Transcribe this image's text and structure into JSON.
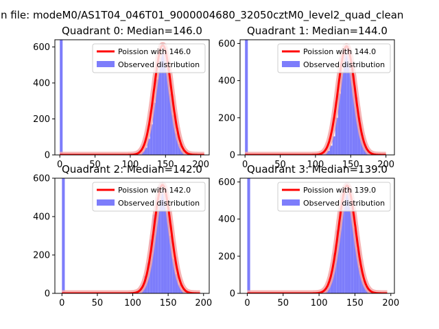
{
  "figure": {
    "suptitle": "n file: modeM0/AS1T04_046T01_9000004680_32050cztM0_level2_quad_clean",
    "colors": {
      "hist": "#7d7dfb",
      "fit": "#ff0000",
      "fit_glow": "#f4a6a6",
      "axis": "#000000"
    }
  },
  "chart_data": [
    {
      "type": "bar",
      "title": "Quadrant 0: Median=146.0",
      "xlim": [
        -7,
        212
      ],
      "ylim": [
        0,
        640
      ],
      "xticks": [
        0,
        50,
        100,
        150,
        200
      ],
      "yticks": [
        0,
        200,
        400,
        600
      ],
      "legend": [
        "Poission with 146.0",
        "Observed distribution"
      ],
      "legend_position": "upper right",
      "median": 146.0,
      "histogram": {
        "bin_width": 4,
        "bins": [
          [
            0,
            700
          ],
          [
            84,
            3
          ],
          [
            88,
            6
          ],
          [
            92,
            3
          ],
          [
            96,
            4
          ],
          [
            100,
            3
          ],
          [
            104,
            5
          ],
          [
            108,
            6
          ],
          [
            112,
            10
          ],
          [
            116,
            20
          ],
          [
            120,
            40
          ],
          [
            124,
            90
          ],
          [
            128,
            170
          ],
          [
            132,
            290
          ],
          [
            136,
            420
          ],
          [
            140,
            540
          ],
          [
            144,
            610
          ],
          [
            148,
            580
          ],
          [
            152,
            480
          ],
          [
            156,
            340
          ],
          [
            160,
            220
          ],
          [
            164,
            120
          ],
          [
            168,
            60
          ],
          [
            172,
            25
          ],
          [
            176,
            10
          ],
          [
            180,
            5
          ],
          [
            184,
            3
          ],
          [
            188,
            2
          ],
          [
            192,
            1
          ],
          [
            196,
            1
          ],
          [
            200,
            1
          ]
        ]
      },
      "fit": {
        "label": "Poission with 146.0",
        "mean": 146.0,
        "peak": 610,
        "x_range": [
          0,
          205
        ]
      }
    },
    {
      "type": "bar",
      "title": "Quadrant 1: Median=144.0",
      "xlim": [
        -7,
        212
      ],
      "ylim": [
        0,
        620
      ],
      "xticks": [
        0,
        50,
        100,
        150,
        200
      ],
      "yticks": [
        0,
        200,
        400,
        600
      ],
      "legend": [
        "Poission with 144.0",
        "Observed distribution"
      ],
      "legend_position": "upper right",
      "median": 144.0,
      "histogram": {
        "bin_width": 4,
        "bins": [
          [
            0,
            700
          ],
          [
            84,
            3
          ],
          [
            88,
            5
          ],
          [
            92,
            4
          ],
          [
            96,
            3
          ],
          [
            100,
            4
          ],
          [
            104,
            5
          ],
          [
            108,
            8
          ],
          [
            112,
            12
          ],
          [
            116,
            22
          ],
          [
            120,
            50
          ],
          [
            124,
            100
          ],
          [
            128,
            200
          ],
          [
            132,
            330
          ],
          [
            136,
            450
          ],
          [
            140,
            560
          ],
          [
            144,
            590
          ],
          [
            148,
            520
          ],
          [
            152,
            430
          ],
          [
            156,
            310
          ],
          [
            160,
            200
          ],
          [
            164,
            120
          ],
          [
            168,
            60
          ],
          [
            172,
            20
          ],
          [
            176,
            8
          ],
          [
            180,
            4
          ],
          [
            184,
            3
          ],
          [
            188,
            2
          ],
          [
            192,
            1
          ],
          [
            196,
            1
          ],
          [
            200,
            1
          ]
        ]
      },
      "fit": {
        "label": "Poission with 144.0",
        "mean": 144.0,
        "peak": 585,
        "x_range": [
          0,
          200
        ]
      }
    },
    {
      "type": "bar",
      "title": "Quadrant 2: Median=142.0",
      "xlim": [
        -10,
        208
      ],
      "ylim": [
        0,
        600
      ],
      "xticks": [
        0,
        50,
        100,
        150,
        200
      ],
      "yticks": [
        0,
        200,
        400,
        600
      ],
      "legend": [
        "Poission with 142.0",
        "Observed distribution"
      ],
      "legend_position": "upper right",
      "median": 142.0,
      "histogram": {
        "bin_width": 4,
        "bins": [
          [
            0,
            700
          ],
          [
            80,
            3
          ],
          [
            84,
            4
          ],
          [
            88,
            3
          ],
          [
            92,
            4
          ],
          [
            96,
            5
          ],
          [
            100,
            8
          ],
          [
            104,
            12
          ],
          [
            108,
            18
          ],
          [
            112,
            40
          ],
          [
            116,
            90
          ],
          [
            120,
            160
          ],
          [
            124,
            280
          ],
          [
            128,
            410
          ],
          [
            132,
            500
          ],
          [
            136,
            560
          ],
          [
            140,
            570
          ],
          [
            144,
            520
          ],
          [
            148,
            420
          ],
          [
            152,
            300
          ],
          [
            156,
            180
          ],
          [
            160,
            100
          ],
          [
            164,
            45
          ],
          [
            168,
            20
          ],
          [
            172,
            10
          ],
          [
            176,
            5
          ],
          [
            180,
            4
          ],
          [
            184,
            3
          ],
          [
            188,
            2
          ],
          [
            192,
            2
          ],
          [
            196,
            1
          ]
        ]
      },
      "fit": {
        "label": "Poission with 142.0",
        "mean": 142.0,
        "peak": 565,
        "x_range": [
          0,
          195
        ]
      }
    },
    {
      "type": "bar",
      "title": "Quadrant 3: Median=139.0",
      "xlim": [
        -10,
        205
      ],
      "ylim": [
        0,
        620
      ],
      "xticks": [
        0,
        50,
        100,
        150,
        200
      ],
      "yticks": [
        0,
        200,
        400,
        600
      ],
      "legend": [
        "Poission with 139.0",
        "Observed distribution"
      ],
      "legend_position": "upper right",
      "median": 139.0,
      "histogram": {
        "bin_width": 4,
        "bins": [
          [
            0,
            700
          ],
          [
            76,
            3
          ],
          [
            80,
            4
          ],
          [
            84,
            5
          ],
          [
            88,
            4
          ],
          [
            92,
            5
          ],
          [
            96,
            6
          ],
          [
            100,
            8
          ],
          [
            104,
            14
          ],
          [
            108,
            30
          ],
          [
            112,
            60
          ],
          [
            116,
            120
          ],
          [
            120,
            220
          ],
          [
            124,
            340
          ],
          [
            128,
            460
          ],
          [
            132,
            540
          ],
          [
            136,
            590
          ],
          [
            140,
            560
          ],
          [
            144,
            470
          ],
          [
            148,
            350
          ],
          [
            152,
            240
          ],
          [
            156,
            140
          ],
          [
            160,
            70
          ],
          [
            164,
            35
          ],
          [
            168,
            15
          ],
          [
            172,
            8
          ],
          [
            176,
            5
          ],
          [
            180,
            3
          ],
          [
            184,
            2
          ],
          [
            188,
            1
          ],
          [
            192,
            1
          ]
        ]
      },
      "fit": {
        "label": "Poission with 139.0",
        "mean": 139.0,
        "peak": 580,
        "x_range": [
          0,
          195
        ]
      }
    }
  ]
}
